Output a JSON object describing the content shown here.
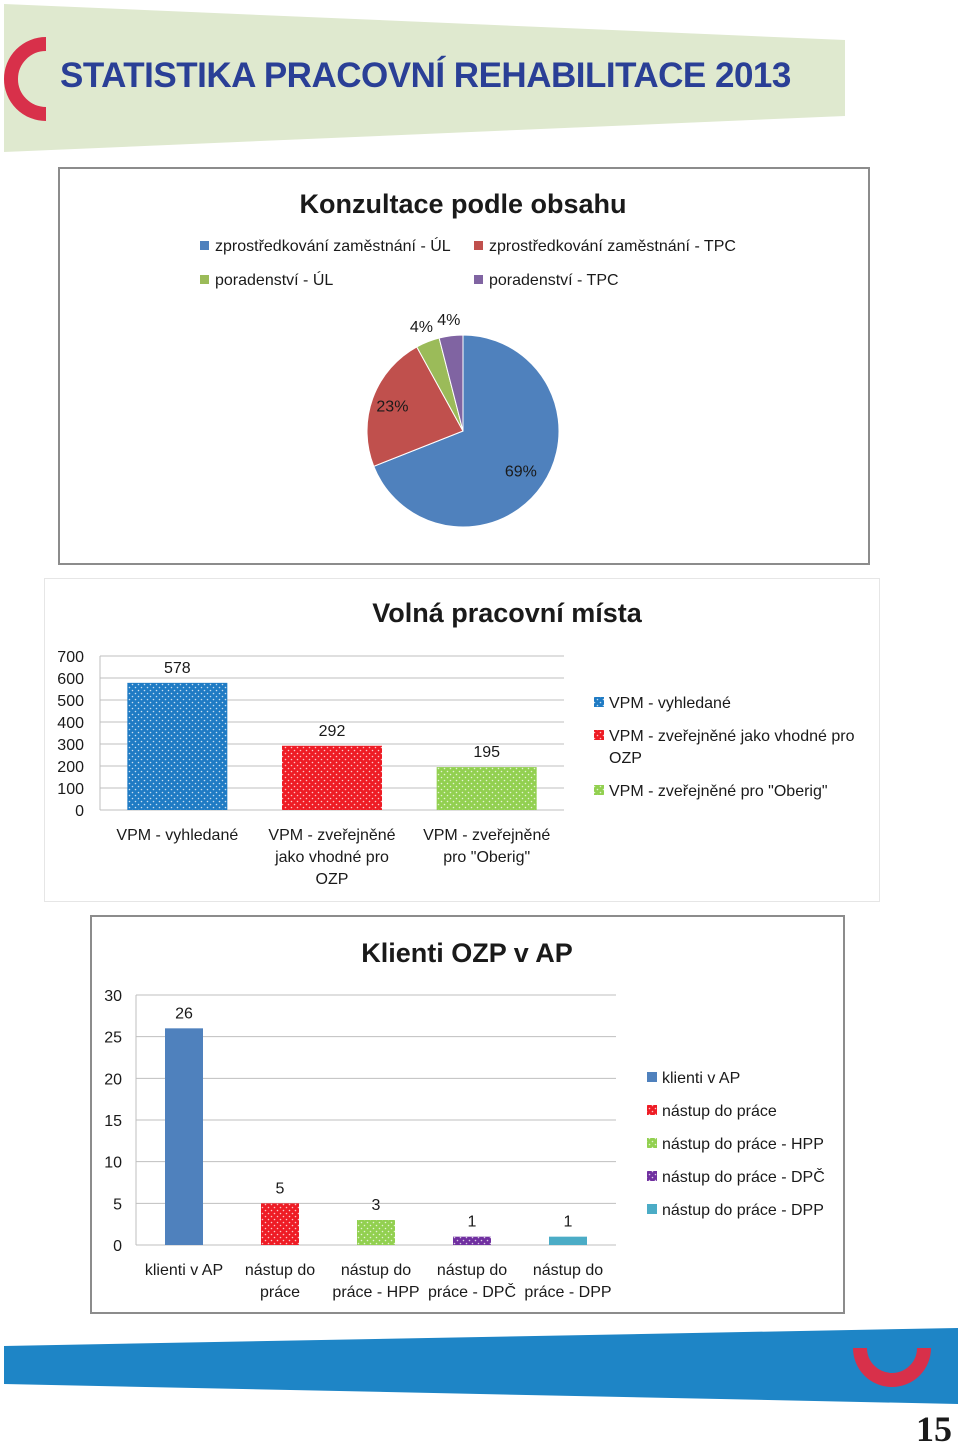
{
  "header": {
    "title": "STATISTIKA PRACOVNÍ REHABILITACE 2013"
  },
  "footer": {
    "page_number": "15"
  },
  "colors": {
    "header_band": "#dfe9cf",
    "title_text": "#2a3f96",
    "logo_red": "#d8304a",
    "footer_blue": "#1e85c6"
  },
  "chart_data": [
    {
      "type": "pie",
      "title": "Konzultace podle obsahu",
      "legend_position": "top",
      "slices": [
        {
          "label": "zprostředkování zaměstnání - ÚL",
          "value": 69,
          "display": "69%",
          "color": "#4f81bd"
        },
        {
          "label": "zprostředkování zaměstnání - TPC",
          "value": 23,
          "display": "23%",
          "color": "#c0504d"
        },
        {
          "label": "poradenství - ÚL",
          "value": 4,
          "display": "4%",
          "color": "#9bbb59"
        },
        {
          "label": "poradenství - TPC",
          "value": 4,
          "display": "4%",
          "color": "#8064a2"
        }
      ]
    },
    {
      "type": "bar",
      "title": "Volná pracovní místa",
      "categories": [
        "VPM - vyhledané",
        "VPM - zveřejněné jako vhodné pro OZP",
        "VPM - zveřejněné pro \"Oberig\""
      ],
      "category_lines": [
        [
          "VPM - vyhledané"
        ],
        [
          "VPM - zveřejněné",
          "jako vhodné pro",
          "OZP"
        ],
        [
          "VPM - zveřejněné",
          "pro \"Oberig\""
        ]
      ],
      "values": [
        578,
        292,
        195
      ],
      "colors": [
        "#1f7bc4",
        "#ee1c25",
        "#92d050"
      ],
      "ylim": [
        0,
        700
      ],
      "yticks": [
        0,
        100,
        200,
        300,
        400,
        500,
        600,
        700
      ],
      "grid": true,
      "legend_position": "right",
      "legend": [
        "VPM - vyhledané",
        "VPM - zveřejněné jako vhodné pro OZP",
        "VPM - zveřejněné pro \"Oberig\""
      ],
      "legend_lines": [
        [
          "VPM - vyhledané"
        ],
        [
          "VPM - zveřejněné jako vhodné pro",
          "OZP"
        ],
        [
          "VPM - zveřejněné pro \"Oberig\""
        ]
      ]
    },
    {
      "type": "bar",
      "title": "Klienti OZP v AP",
      "categories": [
        "klienti v AP",
        "nástup do práce",
        "nástup do práce - HPP",
        "nástup do práce - DPČ",
        "nástup do práce - DPP"
      ],
      "category_lines": [
        [
          "klienti v AP"
        ],
        [
          "nástup do",
          "práce"
        ],
        [
          "nástup do",
          "práce - HPP"
        ],
        [
          "nástup do",
          "práce - DPČ"
        ],
        [
          "nástup do",
          "práce - DPP"
        ]
      ],
      "values": [
        26,
        5,
        3,
        1,
        1
      ],
      "colors": [
        "#4f81bd",
        "#ee1c25",
        "#92d050",
        "#7030a0",
        "#4bacc6"
      ],
      "ylim": [
        0,
        30
      ],
      "yticks": [
        0,
        5,
        10,
        15,
        20,
        25,
        30
      ],
      "grid": true,
      "legend_position": "right",
      "legend": [
        "klienti v AP",
        "nástup do práce",
        "nástup do práce - HPP",
        "nástup do práce - DPČ",
        "nástup do práce - DPP"
      ]
    }
  ]
}
